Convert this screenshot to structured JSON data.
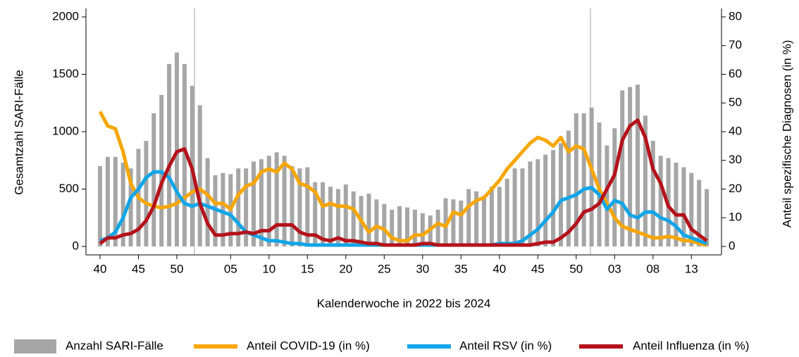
{
  "chart_data": {
    "type": "bar",
    "x_label": "Kalenderwoche in 2022 bis 2024",
    "y_label": "Gesamtzahl SARI-Fälle",
    "y2_label": "Anteil spezifische Diagnosen (in %)",
    "categories": [
      "40",
      null,
      null,
      null,
      null,
      "45",
      null,
      null,
      null,
      null,
      "50",
      null,
      null,
      null,
      null,
      null,
      null,
      "05",
      null,
      null,
      null,
      null,
      "10",
      null,
      null,
      null,
      null,
      "15",
      null,
      null,
      null,
      null,
      "20",
      null,
      null,
      null,
      null,
      "25",
      null,
      null,
      null,
      null,
      "30",
      null,
      null,
      null,
      null,
      "35",
      null,
      null,
      null,
      null,
      "40",
      null,
      null,
      null,
      null,
      "45",
      null,
      null,
      null,
      null,
      "50",
      null,
      null,
      null,
      null,
      "03",
      null,
      null,
      null,
      null,
      "08",
      null,
      null,
      null,
      null,
      "13",
      null,
      null
    ],
    "ylim": [
      0,
      2000
    ],
    "yticks": [
      0,
      500,
      1000,
      1500,
      2000
    ],
    "y2lim": [
      0,
      80
    ],
    "y2ticks": [
      0,
      10,
      20,
      30,
      40,
      50,
      60,
      70,
      80
    ],
    "series": [
      {
        "name": "Anzahl SARI-Fälle",
        "type": "bar",
        "color": "#a6a6a6",
        "values": [
          700,
          780,
          780,
          730,
          680,
          850,
          920,
          1160,
          1320,
          1590,
          1690,
          1590,
          1400,
          1230,
          770,
          620,
          640,
          630,
          680,
          680,
          740,
          760,
          790,
          820,
          790,
          700,
          680,
          690,
          560,
          560,
          520,
          500,
          540,
          480,
          440,
          460,
          410,
          370,
          320,
          350,
          340,
          320,
          290,
          270,
          320,
          420,
          410,
          400,
          500,
          480,
          440,
          520,
          520,
          590,
          680,
          680,
          740,
          760,
          800,
          840,
          900,
          1010,
          1160,
          1160,
          1210,
          1080,
          880,
          1030,
          1360,
          1390,
          1410,
          1140,
          920,
          790,
          770,
          730,
          690,
          640,
          580,
          500
        ]
      },
      {
        "name": "Anteil COVID-19 (in %)",
        "type": "line",
        "axis": "y2",
        "color": "#f7a600",
        "values": [
          47,
          42,
          41,
          33,
          22,
          17,
          15,
          14,
          13.5,
          14,
          15,
          17,
          19,
          20,
          18,
          15,
          15,
          13,
          18,
          21,
          22,
          26,
          27,
          26,
          29,
          27,
          22,
          21,
          19,
          14,
          15,
          14,
          14,
          13,
          9,
          5,
          7,
          6,
          3,
          2,
          2,
          4,
          4,
          6,
          8,
          7,
          12,
          11,
          14,
          16,
          17,
          20,
          23,
          27,
          30,
          33,
          36,
          38,
          37,
          35,
          38,
          33,
          35,
          34,
          27,
          20,
          15,
          10,
          7,
          6,
          5,
          4,
          3,
          3,
          3.5,
          3,
          2,
          2,
          1,
          0.5
        ]
      },
      {
        "name": "Anteil RSV (in %)",
        "type": "line",
        "axis": "y2",
        "color": "#10a5e8",
        "values": [
          2,
          3,
          5,
          10,
          17,
          20,
          24,
          26,
          26,
          24,
          19,
          15,
          14,
          15,
          14,
          13,
          12,
          11,
          8,
          5,
          4,
          3,
          2,
          2,
          1.5,
          1,
          1,
          0.5,
          0.5,
          0.5,
          0.5,
          0.5,
          0.5,
          0.5,
          0.5,
          0.5,
          0.5,
          0.5,
          0.5,
          0.5,
          0.5,
          0.5,
          0.5,
          0.5,
          0.5,
          0.5,
          0.5,
          0.5,
          0.5,
          0.5,
          0.5,
          0.5,
          1,
          1,
          1,
          2,
          4,
          6,
          9,
          12,
          16,
          17,
          18,
          20,
          20.5,
          18,
          13,
          16,
          15,
          11,
          10,
          12,
          12,
          10,
          9,
          7,
          4,
          3,
          2,
          1
        ]
      },
      {
        "name": "Anteil Influenza (in %)",
        "type": "line",
        "axis": "y2",
        "color": "#b5121b",
        "values": [
          1,
          3,
          3,
          4,
          4.5,
          6,
          9,
          14,
          22,
          28,
          33,
          34,
          27,
          15,
          8,
          4,
          4,
          4.5,
          4.5,
          5,
          4.5,
          5.5,
          5.5,
          7.5,
          7.5,
          7.5,
          5,
          4,
          4,
          2.5,
          2,
          3,
          2,
          2,
          1.5,
          1,
          1,
          0.5,
          0.5,
          0.5,
          0.5,
          0.5,
          1,
          1,
          0.5,
          0.5,
          0.5,
          0.5,
          0.5,
          0.5,
          0.5,
          0.5,
          0.5,
          0.5,
          0.5,
          0.5,
          0.5,
          1,
          1.5,
          1.5,
          3,
          5,
          8,
          12,
          13,
          15,
          20,
          25,
          37,
          42,
          44,
          38,
          27,
          22,
          14,
          11,
          11,
          6,
          4,
          2
        ]
      }
    ]
  }
}
